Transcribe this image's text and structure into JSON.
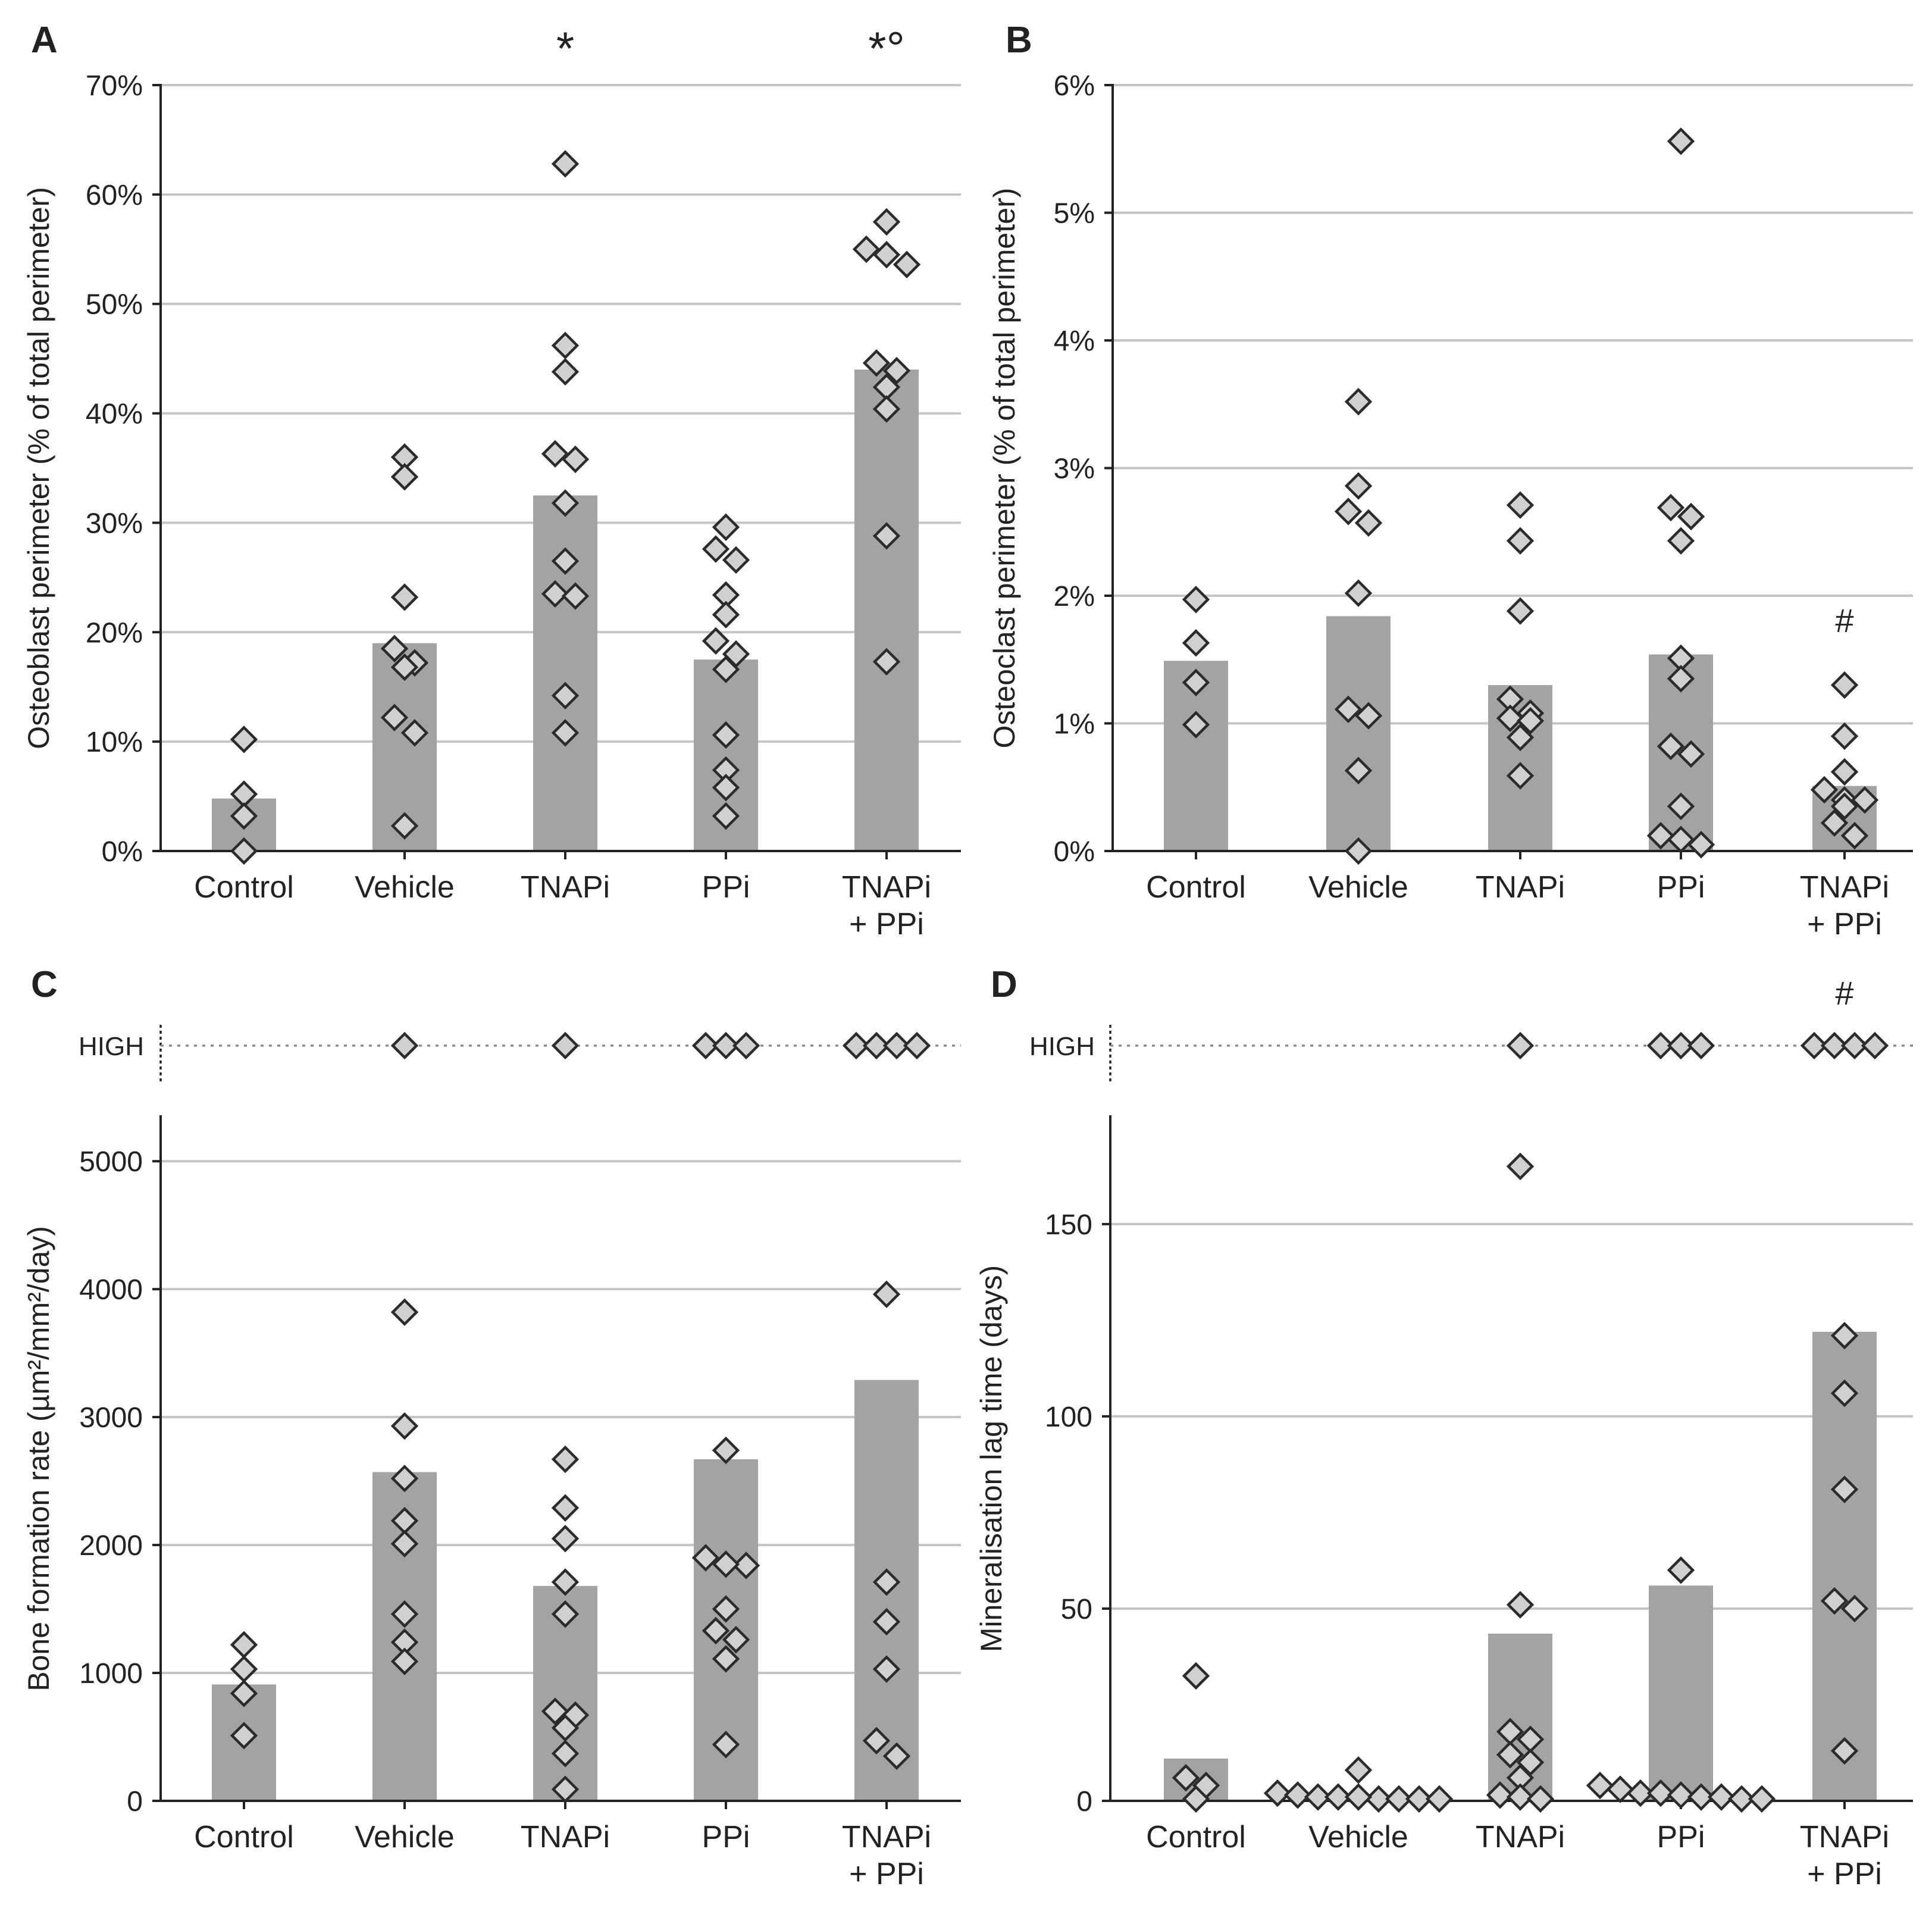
{
  "colors": {
    "bar": "#a3a3a3",
    "marker_fill": "#d0d0d0",
    "marker_stroke": "#2b2b2b",
    "grid": "#c4c4c4",
    "axis": "#222222",
    "text": "#222222"
  },
  "chart_data": [
    {
      "panel": "A",
      "type": "bar",
      "ylabel": "Osteoblast perimeter (% of total perimeter)",
      "yunit": "%",
      "ylim": [
        0,
        70
      ],
      "yticks": [
        0,
        10,
        20,
        30,
        40,
        50,
        60,
        70
      ],
      "yticklabels": [
        "0%",
        "10%",
        "20%",
        "30%",
        "40%",
        "50%",
        "60%",
        "70%"
      ],
      "grid": true,
      "categories": [
        "Control",
        "Vehicle",
        "TNAPi",
        "PPi",
        "TNAPi\n+ PPi"
      ],
      "bars": [
        4.8,
        19.0,
        32.5,
        17.5,
        44.0
      ],
      "points": [
        [
          10.2,
          5.2,
          3.2,
          0.0
        ],
        [
          36.0,
          34.2,
          23.2,
          18.5,
          17.2,
          16.8,
          12.2,
          10.8,
          2.3
        ],
        [
          62.8,
          46.2,
          43.8,
          36.3,
          35.8,
          31.8,
          26.5,
          23.5,
          23.3,
          14.2,
          10.8
        ],
        [
          29.6,
          27.6,
          26.6,
          23.4,
          21.6,
          19.2,
          18.0,
          16.6,
          10.6,
          7.4,
          5.8,
          3.2
        ],
        [
          57.5,
          55.0,
          54.5,
          53.6,
          44.6,
          43.9,
          42.4,
          40.4,
          28.8,
          17.3
        ]
      ],
      "annotations": [
        {
          "category_index": 2,
          "text": "*"
        },
        {
          "category_index": 4,
          "text": "*°"
        }
      ]
    },
    {
      "panel": "B",
      "type": "bar",
      "ylabel": "Osteoclast perimeter (% of total perimeter)",
      "yunit": "%",
      "ylim": [
        0,
        6
      ],
      "yticks": [
        0,
        1,
        2,
        3,
        4,
        5,
        6
      ],
      "yticklabels": [
        "0%",
        "1%",
        "2%",
        "3%",
        "4%",
        "5%",
        "6%"
      ],
      "grid": true,
      "categories": [
        "Control",
        "Vehicle",
        "TNAPi",
        "PPi",
        "TNAPi\n+ PPi"
      ],
      "bars": [
        1.49,
        1.84,
        1.3,
        1.54,
        0.51
      ],
      "points": [
        [
          1.97,
          1.63,
          1.32,
          0.99
        ],
        [
          3.52,
          2.86,
          2.66,
          2.57,
          2.02,
          1.11,
          1.06,
          0.63,
          0.0
        ],
        [
          2.71,
          2.43,
          1.88,
          1.19,
          1.08,
          1.04,
          1.02,
          0.89,
          0.59
        ],
        [
          5.56,
          2.69,
          2.62,
          2.43,
          1.51,
          1.35,
          0.82,
          0.76,
          0.35,
          0.12,
          0.09,
          0.05
        ],
        [
          1.3,
          0.9,
          0.62,
          0.48,
          0.4,
          0.4,
          0.35,
          0.22,
          0.12
        ]
      ],
      "annotations": [
        {
          "category_index": 4,
          "text": "#"
        }
      ]
    },
    {
      "panel": "C",
      "type": "bar",
      "ylabel": "Bone formation rate (µm²/mm²/day)",
      "ylim": [
        0,
        5350
      ],
      "yticks": [
        0,
        1000,
        2000,
        3000,
        4000,
        5000
      ],
      "yticklabels": [
        "0",
        "1000",
        "2000",
        "3000",
        "4000",
        "5000"
      ],
      "grid": true,
      "categories": [
        "Control",
        "Vehicle",
        "TNAPi",
        "PPi",
        "TNAPi\n+ PPi"
      ],
      "bars": [
        910,
        2570,
        1680,
        2670,
        3290
      ],
      "points": [
        [
          1220,
          1030,
          840,
          510
        ],
        [
          3820,
          2930,
          2520,
          2190,
          2010,
          1460,
          1240,
          1090
        ],
        [
          2670,
          2290,
          2050,
          1710,
          1460,
          670,
          700,
          570,
          370,
          90
        ],
        [
          2740,
          1900,
          1840,
          1850,
          1500,
          1330,
          1260,
          1110,
          440
        ],
        [
          3960,
          1710,
          1400,
          1030,
          470,
          350
        ]
      ],
      "high_label": "HIGH",
      "high_counts": [
        0,
        1,
        1,
        3,
        4
      ],
      "annotations": []
    },
    {
      "panel": "D",
      "type": "bar",
      "ylabel": "Mineralisation lag time (days)",
      "ylim": [
        0,
        178
      ],
      "yticks": [
        0,
        50,
        100,
        150
      ],
      "yticklabels": [
        "0",
        "50",
        "100",
        "150"
      ],
      "grid": true,
      "categories": [
        "Control",
        "Vehicle",
        "TNAPi",
        "PPi",
        "TNAPi\n+ PPi"
      ],
      "bars": [
        11,
        0,
        43.5,
        56,
        122
      ],
      "points": [
        [
          32.5,
          6,
          4,
          0.5
        ],
        [
          8,
          2,
          1.5,
          0.5,
          0.5,
          0.5,
          1,
          1,
          0.5,
          1
        ],
        [
          165,
          51,
          18,
          16,
          12,
          10,
          6,
          1.5,
          1,
          0.5
        ],
        [
          60,
          4,
          3,
          2,
          2,
          1.5,
          1,
          1,
          0.5,
          0.5
        ],
        [
          121,
          106,
          81,
          52,
          50,
          13
        ]
      ],
      "high_label": "HIGH",
      "high_counts": [
        0,
        0,
        1,
        3,
        4
      ],
      "annotations": [
        {
          "category_index": 4,
          "text": "#"
        }
      ]
    }
  ]
}
